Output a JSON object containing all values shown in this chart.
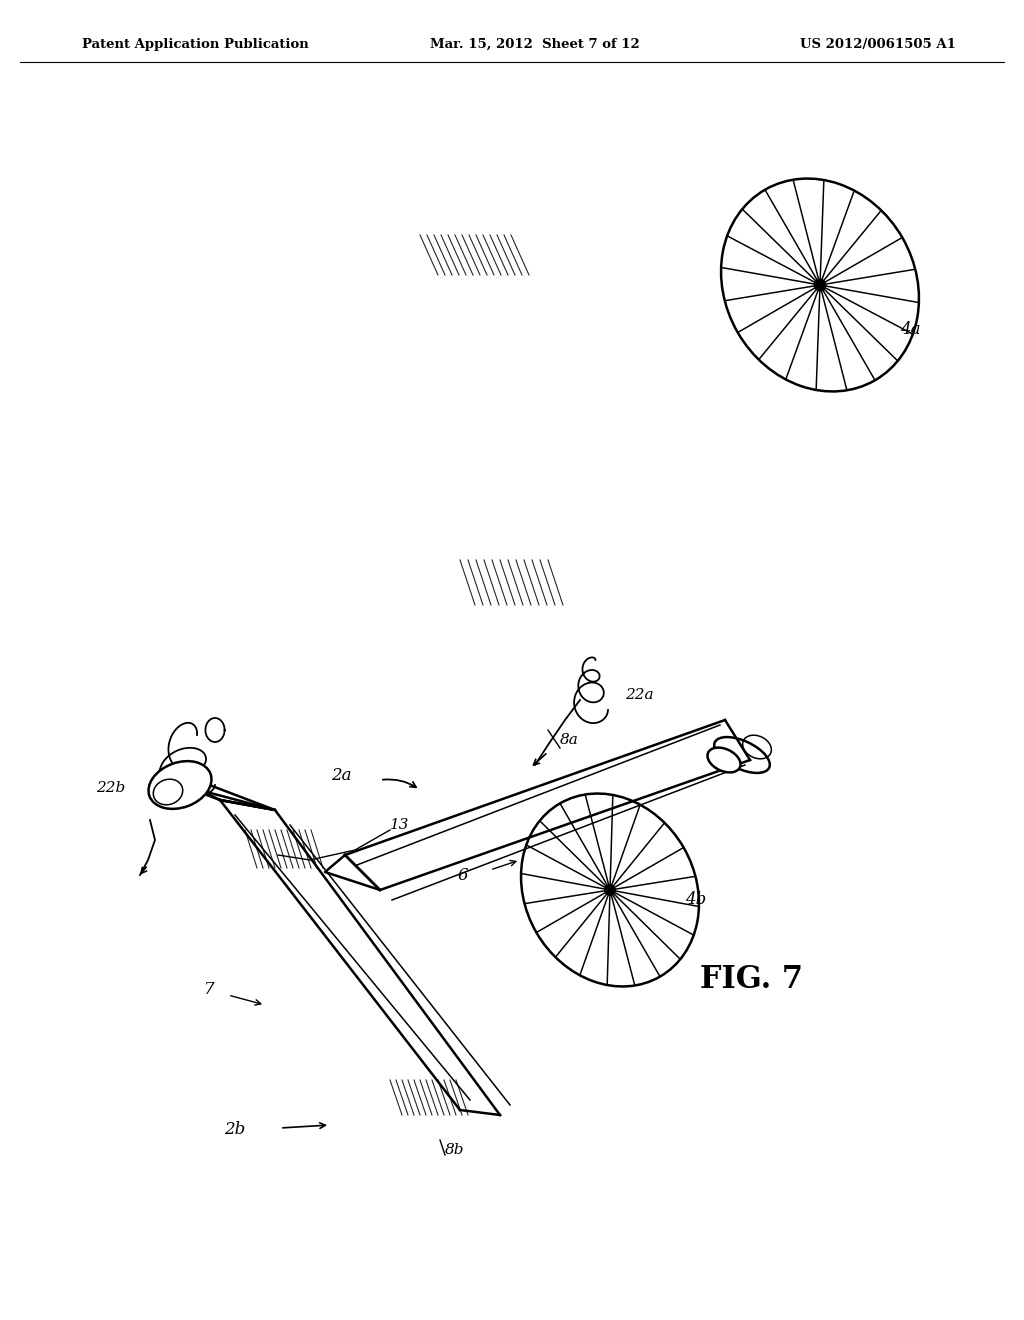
{
  "bg_color": "#ffffff",
  "header_left": "Patent Application Publication",
  "header_mid": "Mar. 15, 2012  Sheet 7 of 12",
  "header_right": "US 2012/0061505 A1",
  "fig_label": "FIG. 7",
  "line_color": "#000000"
}
